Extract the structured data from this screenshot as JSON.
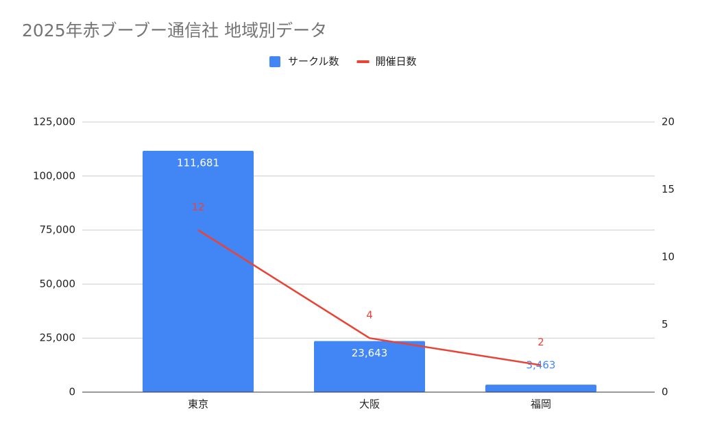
{
  "chart_data": {
    "type": "combo",
    "title": "2025年赤ブーブー通信社 地域別データ",
    "categories": [
      "東京",
      "大阪",
      "福岡"
    ],
    "series": [
      {
        "name": "サークル数",
        "type": "bar",
        "color": "#4285f4",
        "values": [
          111681,
          23643,
          3463
        ],
        "value_labels": [
          "111,681",
          "23,643",
          "3,463"
        ]
      },
      {
        "name": "開催日数",
        "type": "line",
        "axis": "y2",
        "color": "#ea4335",
        "values": [
          12,
          4,
          2
        ]
      }
    ],
    "ylim": [
      0,
      125000
    ],
    "yticks": [
      0,
      {
        "value": 25000,
        "label": "25,000"
      },
      {
        "value": 50000,
        "label": "50,000"
      },
      {
        "value": 75000,
        "label": "75,000"
      },
      {
        "value": 100000,
        "label": "100,000"
      },
      {
        "value": 125000,
        "label": "125,000"
      }
    ],
    "y2lim": [
      0,
      20
    ],
    "y2ticks": [
      0,
      5,
      10,
      15,
      20
    ],
    "grid": true,
    "legend": "top"
  }
}
